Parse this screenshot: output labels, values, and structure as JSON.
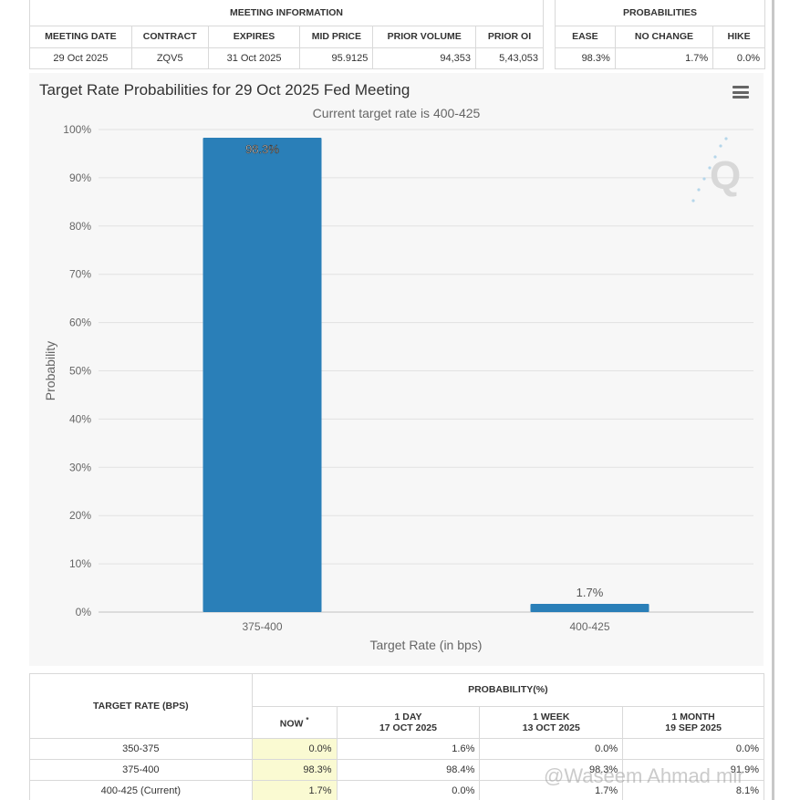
{
  "meeting_info": {
    "heading": "MEETING INFORMATION",
    "columns": [
      "MEETING DATE",
      "CONTRACT",
      "EXPIRES",
      "MID PRICE",
      "PRIOR VOLUME",
      "PRIOR OI"
    ],
    "row": [
      "29 Oct 2025",
      "ZQV5",
      "31 Oct 2025",
      "95.9125",
      "94,353",
      "5,43,053"
    ]
  },
  "probabilities": {
    "heading": "PROBABILITIES",
    "columns": [
      "EASE",
      "NO CHANGE",
      "HIKE"
    ],
    "row": [
      "98.3%",
      "1.7%",
      "0.0%"
    ]
  },
  "chart_panel": {
    "title": "Target Rate Probabilities for 29 Oct 2025 Fed Meeting",
    "subtitle": "Current target rate is 400-425",
    "menu_icon": "hamburger-menu-icon",
    "logo_letter": "Q"
  },
  "chart_data": {
    "type": "bar",
    "categories": [
      "375-400",
      "400-425"
    ],
    "values": [
      98.3,
      1.7
    ],
    "data_labels": [
      "98.3%",
      "1.7%"
    ],
    "xlabel": "Target Rate (in bps)",
    "ylabel": "Probability",
    "ylim": [
      0,
      100
    ],
    "yticks": [
      "0%",
      "10%",
      "20%",
      "30%",
      "40%",
      "50%",
      "60%",
      "70%",
      "80%",
      "90%",
      "100%"
    ],
    "grid": true,
    "bar_color": "#2a7fb8"
  },
  "current_table": {
    "rate_heading": "TARGET RATE (BPS)",
    "prob_heading": "PROBABILITY(%)",
    "subcolumns": [
      {
        "line1": "NOW",
        "line2": "",
        "mark": "*"
      },
      {
        "line1": "1 DAY",
        "line2": "17 OCT 2025",
        "mark": ""
      },
      {
        "line1": "1 WEEK",
        "line2": "13 OCT 2025",
        "mark": ""
      },
      {
        "line1": "1 MONTH",
        "line2": "19 SEP 2025",
        "mark": ""
      }
    ],
    "rows": [
      {
        "rate": "350-375",
        "now": "0.0%",
        "day": "1.6%",
        "week": "0.0%",
        "month": "0.0%"
      },
      {
        "rate": "375-400",
        "now": "98.3%",
        "day": "98.4%",
        "week": "98.3%",
        "month": "91.9%"
      },
      {
        "rate": "400-425 (Current)",
        "now": "1.7%",
        "day": "0.0%",
        "week": "1.7%",
        "month": "8.1%"
      }
    ]
  },
  "watermark": "@Waseem Ahmad mir"
}
